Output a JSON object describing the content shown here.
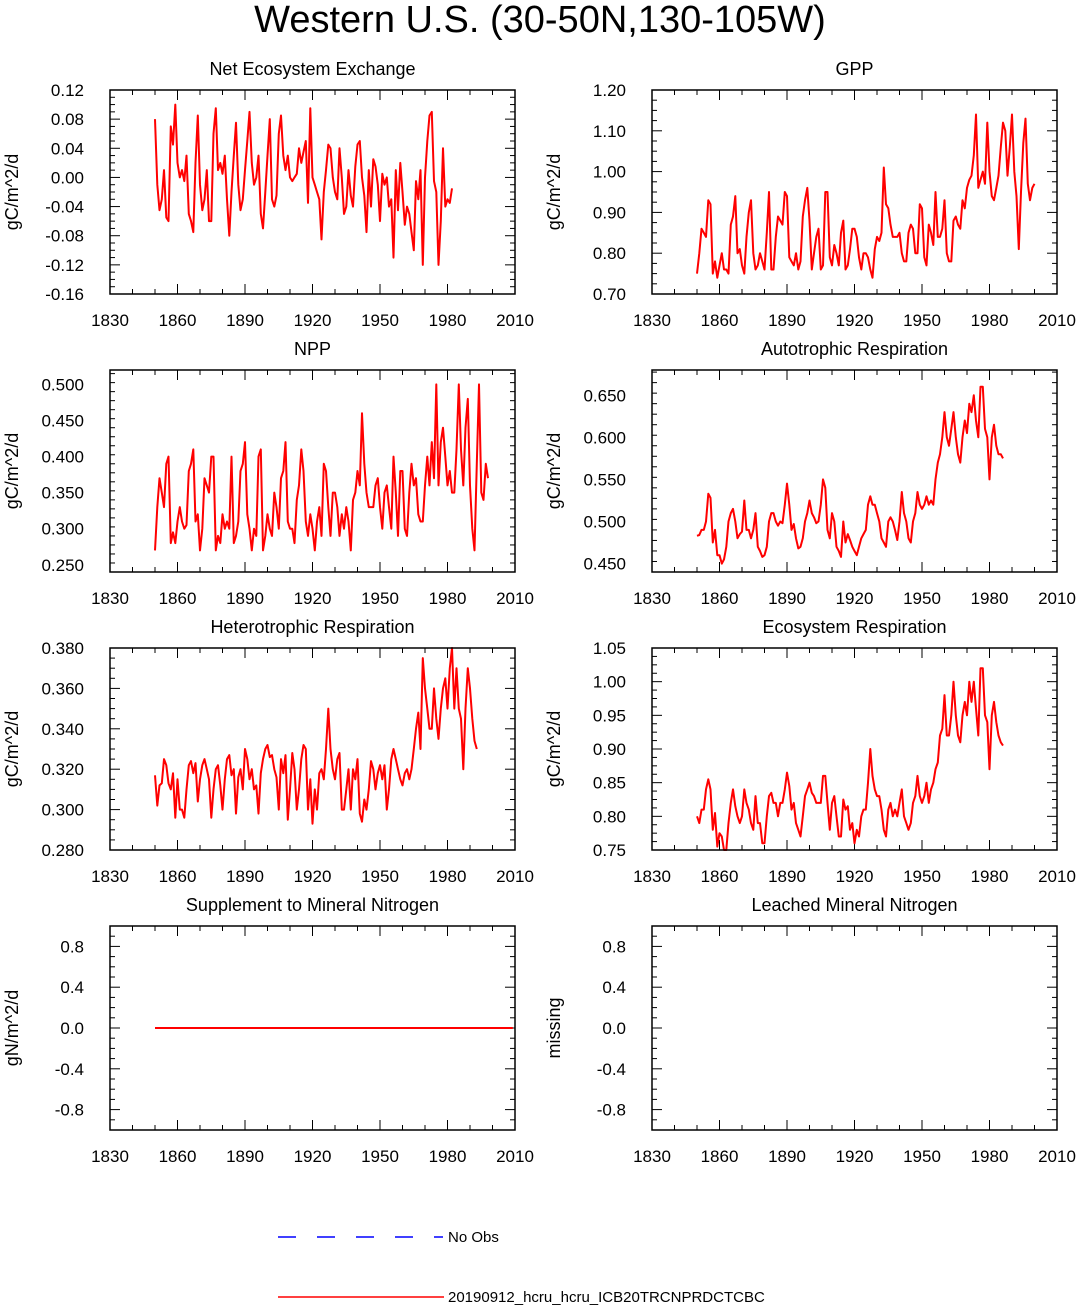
{
  "title": "Western U.S. (30-50N,130-105W)",
  "colors": {
    "model": "#ff0000",
    "obs": "#0000ff",
    "frame": "#000000"
  },
  "legend": {
    "obs_label": "No Obs",
    "model_label": "20190912_hcru_hcru_ICB20TRCNPRDCTCBC"
  },
  "chart_data": [
    {
      "type": "line",
      "title": "Net Ecosystem Exchange",
      "ylabel": "gC/m^2/d",
      "xlim": [
        1830,
        2010
      ],
      "ylim": [
        -0.16,
        0.12
      ],
      "xticks": [
        1830,
        1860,
        1890,
        1920,
        1950,
        1980,
        2010
      ],
      "yticks": [
        -0.16,
        -0.12,
        -0.08,
        -0.04,
        0.0,
        0.04,
        0.08,
        0.12
      ],
      "ydec": 2,
      "x_start": 1850,
      "values": [
        0.08,
        -0.01,
        -0.045,
        -0.03,
        0.01,
        -0.055,
        -0.06,
        0.07,
        0.045,
        0.1,
        0.02,
        0.0,
        0.01,
        -0.005,
        0.03,
        -0.05,
        -0.06,
        -0.075,
        0.02,
        0.085,
        -0.01,
        -0.045,
        -0.03,
        0.01,
        -0.06,
        -0.06,
        0.06,
        0.095,
        0.01,
        0.02,
        0.005,
        0.03,
        -0.03,
        -0.08,
        -0.02,
        0.03,
        0.075,
        -0.01,
        -0.045,
        -0.03,
        0.01,
        0.05,
        0.09,
        0.02,
        -0.01,
        0.0,
        0.03,
        -0.05,
        -0.07,
        -0.02,
        0.03,
        0.08,
        -0.03,
        -0.04,
        -0.025,
        0.06,
        0.085,
        0.03,
        0.01,
        0.03,
        0.0,
        -0.005,
        0.0,
        0.005,
        0.04,
        0.02,
        0.035,
        0.05,
        -0.035,
        0.095,
        0.0,
        -0.01,
        -0.02,
        -0.03,
        -0.085,
        -0.02,
        0.01,
        0.045,
        0.04,
        0.0,
        -0.02,
        -0.03,
        0.04,
        0.0,
        -0.05,
        -0.04,
        0.01,
        -0.025,
        -0.04,
        0.015,
        0.045,
        0.05,
        0.0,
        -0.025,
        -0.075,
        0.01,
        -0.04,
        0.025,
        0.015,
        -0.01,
        -0.06,
        0.005,
        -0.01,
        0.0,
        -0.04,
        -0.03,
        -0.11,
        0.01,
        -0.045,
        0.02,
        -0.02,
        -0.065,
        -0.04,
        -0.05,
        -0.075,
        -0.1,
        -0.005,
        -0.03,
        0.01,
        -0.12,
        0.0,
        0.05,
        0.085,
        0.09,
        -0.005,
        -0.02,
        -0.12,
        -0.06,
        0.04,
        -0.04,
        -0.03,
        -0.035,
        -0.015
      ]
    },
    {
      "type": "line",
      "title": "GPP",
      "ylabel": "gC/m^2/d",
      "xlim": [
        1830,
        2010
      ],
      "ylim": [
        0.7,
        1.2
      ],
      "xticks": [
        1830,
        1860,
        1890,
        1920,
        1950,
        1980,
        2010
      ],
      "yticks": [
        0.7,
        0.8,
        0.9,
        1.0,
        1.1,
        1.2
      ],
      "ydec": 2,
      "x_start": 1850,
      "values": [
        0.75,
        0.8,
        0.86,
        0.85,
        0.84,
        0.93,
        0.92,
        0.75,
        0.78,
        0.74,
        0.77,
        0.8,
        0.76,
        0.76,
        0.75,
        0.87,
        0.89,
        0.94,
        0.8,
        0.81,
        0.77,
        0.75,
        0.84,
        0.9,
        0.93,
        0.8,
        0.76,
        0.77,
        0.8,
        0.78,
        0.76,
        0.85,
        0.95,
        0.76,
        0.76,
        0.84,
        0.89,
        0.88,
        0.87,
        0.95,
        0.94,
        0.79,
        0.78,
        0.77,
        0.8,
        0.76,
        0.78,
        0.89,
        0.93,
        0.96,
        0.88,
        0.76,
        0.8,
        0.84,
        0.86,
        0.76,
        0.77,
        0.95,
        0.95,
        0.79,
        0.77,
        0.82,
        0.8,
        0.77,
        0.85,
        0.88,
        0.76,
        0.77,
        0.81,
        0.86,
        0.86,
        0.84,
        0.79,
        0.76,
        0.8,
        0.8,
        0.79,
        0.76,
        0.74,
        0.81,
        0.84,
        0.83,
        0.85,
        1.01,
        0.92,
        0.91,
        0.87,
        0.84,
        0.84,
        0.84,
        0.85,
        0.8,
        0.78,
        0.78,
        0.85,
        0.87,
        0.86,
        0.8,
        0.8,
        0.92,
        0.91,
        0.79,
        0.77,
        0.87,
        0.85,
        0.82,
        0.95,
        0.84,
        0.84,
        0.86,
        0.93,
        0.8,
        0.78,
        0.78,
        0.88,
        0.89,
        0.87,
        0.86,
        0.93,
        0.91,
        0.96,
        0.98,
        0.99,
        1.04,
        1.14,
        0.96,
        0.98,
        1.0,
        0.97,
        1.12,
        1.0,
        0.94,
        0.93,
        0.96,
        0.99,
        1.06,
        1.12,
        1.1,
        0.99,
        1.06,
        1.14,
        1.0,
        0.94,
        0.81,
        0.95,
        1.07,
        1.13,
        0.97,
        0.93,
        0.96,
        0.97
      ]
    },
    {
      "type": "line",
      "title": "NPP",
      "ylabel": "gC/m^2/d",
      "xlim": [
        1830,
        2010
      ],
      "ylim": [
        0.24,
        0.52
      ],
      "xticks": [
        1830,
        1860,
        1890,
        1920,
        1950,
        1980,
        2010
      ],
      "yticks": [
        0.25,
        0.3,
        0.35,
        0.4,
        0.45,
        0.5
      ],
      "ydec": 3,
      "x_start": 1850,
      "values": [
        0.27,
        0.33,
        0.37,
        0.35,
        0.33,
        0.39,
        0.4,
        0.28,
        0.295,
        0.28,
        0.31,
        0.33,
        0.31,
        0.3,
        0.305,
        0.38,
        0.39,
        0.41,
        0.31,
        0.32,
        0.27,
        0.3,
        0.37,
        0.36,
        0.35,
        0.4,
        0.4,
        0.27,
        0.29,
        0.28,
        0.32,
        0.3,
        0.31,
        0.3,
        0.4,
        0.28,
        0.29,
        0.31,
        0.38,
        0.39,
        0.42,
        0.32,
        0.3,
        0.27,
        0.3,
        0.29,
        0.4,
        0.41,
        0.27,
        0.29,
        0.32,
        0.3,
        0.29,
        0.35,
        0.33,
        0.3,
        0.37,
        0.38,
        0.42,
        0.31,
        0.3,
        0.3,
        0.28,
        0.34,
        0.36,
        0.41,
        0.38,
        0.31,
        0.29,
        0.32,
        0.3,
        0.27,
        0.31,
        0.33,
        0.29,
        0.39,
        0.38,
        0.33,
        0.29,
        0.35,
        0.35,
        0.33,
        0.29,
        0.32,
        0.3,
        0.33,
        0.31,
        0.27,
        0.34,
        0.35,
        0.38,
        0.36,
        0.46,
        0.39,
        0.35,
        0.33,
        0.33,
        0.33,
        0.36,
        0.37,
        0.33,
        0.3,
        0.35,
        0.36,
        0.33,
        0.3,
        0.4,
        0.35,
        0.29,
        0.38,
        0.38,
        0.3,
        0.29,
        0.35,
        0.39,
        0.36,
        0.37,
        0.32,
        0.31,
        0.31,
        0.36,
        0.4,
        0.36,
        0.42,
        0.37,
        0.5,
        0.36,
        0.42,
        0.44,
        0.4,
        0.36,
        0.38,
        0.35,
        0.35,
        0.41,
        0.5,
        0.41,
        0.36,
        0.44,
        0.48,
        0.36,
        0.3,
        0.27,
        0.39,
        0.5,
        0.35,
        0.34,
        0.39,
        0.37
      ]
    },
    {
      "type": "line",
      "title": "Autotrophic Respiration",
      "ylabel": "gC/m^2/d",
      "xlim": [
        1830,
        2010
      ],
      "ylim": [
        0.44,
        0.68
      ],
      "xticks": [
        1830,
        1860,
        1890,
        1920,
        1950,
        1980,
        2010
      ],
      "yticks": [
        0.45,
        0.5,
        0.55,
        0.6,
        0.65
      ],
      "ydec": 3,
      "x_start": 1850,
      "values": [
        0.483,
        0.484,
        0.49,
        0.49,
        0.5,
        0.533,
        0.528,
        0.475,
        0.49,
        0.46,
        0.46,
        0.45,
        0.455,
        0.47,
        0.5,
        0.51,
        0.515,
        0.5,
        0.48,
        0.485,
        0.488,
        0.525,
        0.49,
        0.49,
        0.48,
        0.49,
        0.51,
        0.47,
        0.465,
        0.458,
        0.46,
        0.47,
        0.5,
        0.51,
        0.51,
        0.5,
        0.495,
        0.5,
        0.498,
        0.52,
        0.545,
        0.52,
        0.49,
        0.497,
        0.48,
        0.468,
        0.47,
        0.48,
        0.5,
        0.51,
        0.525,
        0.51,
        0.505,
        0.498,
        0.5,
        0.52,
        0.55,
        0.54,
        0.49,
        0.48,
        0.51,
        0.5,
        0.47,
        0.465,
        0.458,
        0.5,
        0.475,
        0.485,
        0.478,
        0.47,
        0.465,
        0.46,
        0.47,
        0.48,
        0.485,
        0.49,
        0.52,
        0.53,
        0.52,
        0.52,
        0.51,
        0.5,
        0.48,
        0.475,
        0.47,
        0.5,
        0.505,
        0.5,
        0.49,
        0.478,
        0.5,
        0.535,
        0.51,
        0.5,
        0.48,
        0.475,
        0.5,
        0.51,
        0.535,
        0.52,
        0.515,
        0.52,
        0.53,
        0.52,
        0.525,
        0.52,
        0.55,
        0.57,
        0.58,
        0.6,
        0.63,
        0.6,
        0.59,
        0.61,
        0.63,
        0.6,
        0.58,
        0.57,
        0.6,
        0.62,
        0.605,
        0.64,
        0.63,
        0.65,
        0.62,
        0.6,
        0.66,
        0.66,
        0.61,
        0.6,
        0.55,
        0.6,
        0.615,
        0.59,
        0.58,
        0.58,
        0.575
      ]
    },
    {
      "type": "line",
      "title": "Heterotrophic Respiration",
      "ylabel": "gC/m^2/d",
      "xlim": [
        1830,
        2010
      ],
      "ylim": [
        0.28,
        0.38
      ],
      "xticks": [
        1830,
        1860,
        1890,
        1920,
        1950,
        1980,
        2010
      ],
      "yticks": [
        0.28,
        0.3,
        0.32,
        0.34,
        0.36,
        0.38
      ],
      "ydec": 3,
      "x_start": 1850,
      "values": [
        0.317,
        0.302,
        0.312,
        0.313,
        0.325,
        0.322,
        0.313,
        0.31,
        0.318,
        0.296,
        0.315,
        0.3,
        0.3,
        0.296,
        0.31,
        0.322,
        0.324,
        0.318,
        0.323,
        0.304,
        0.315,
        0.322,
        0.325,
        0.32,
        0.315,
        0.296,
        0.31,
        0.32,
        0.322,
        0.312,
        0.3,
        0.315,
        0.325,
        0.327,
        0.317,
        0.32,
        0.298,
        0.316,
        0.32,
        0.31,
        0.33,
        0.325,
        0.315,
        0.32,
        0.31,
        0.312,
        0.298,
        0.318,
        0.325,
        0.33,
        0.332,
        0.326,
        0.327,
        0.32,
        0.316,
        0.3,
        0.325,
        0.318,
        0.327,
        0.295,
        0.31,
        0.328,
        0.32,
        0.3,
        0.31,
        0.325,
        0.332,
        0.33,
        0.3,
        0.315,
        0.293,
        0.31,
        0.3,
        0.318,
        0.32,
        0.315,
        0.33,
        0.35,
        0.33,
        0.32,
        0.315,
        0.325,
        0.328,
        0.3,
        0.3,
        0.31,
        0.32,
        0.3,
        0.32,
        0.315,
        0.325,
        0.298,
        0.294,
        0.305,
        0.3,
        0.31,
        0.324,
        0.32,
        0.31,
        0.318,
        0.322,
        0.315,
        0.322,
        0.3,
        0.31,
        0.325,
        0.33,
        0.325,
        0.32,
        0.315,
        0.312,
        0.318,
        0.32,
        0.315,
        0.32,
        0.33,
        0.34,
        0.348,
        0.33,
        0.375,
        0.36,
        0.35,
        0.34,
        0.34,
        0.36,
        0.345,
        0.335,
        0.35,
        0.36,
        0.365,
        0.35,
        0.37,
        0.38,
        0.35,
        0.37,
        0.35,
        0.345,
        0.32,
        0.35,
        0.37,
        0.36,
        0.345,
        0.334,
        0.33
      ]
    },
    {
      "type": "line",
      "title": "Ecosystem Respiration",
      "ylabel": "gC/m^2/d",
      "xlim": [
        1830,
        2010
      ],
      "ylim": [
        0.75,
        1.05
      ],
      "xticks": [
        1830,
        1860,
        1890,
        1920,
        1950,
        1980,
        2010
      ],
      "yticks": [
        0.75,
        0.8,
        0.85,
        0.9,
        0.95,
        1.0,
        1.05
      ],
      "ydec": 2,
      "x_start": 1850,
      "values": [
        0.8,
        0.79,
        0.81,
        0.81,
        0.84,
        0.855,
        0.84,
        0.78,
        0.805,
        0.755,
        0.775,
        0.77,
        0.75,
        0.75,
        0.79,
        0.82,
        0.84,
        0.815,
        0.8,
        0.79,
        0.8,
        0.84,
        0.82,
        0.81,
        0.79,
        0.78,
        0.83,
        0.79,
        0.79,
        0.76,
        0.76,
        0.8,
        0.83,
        0.835,
        0.82,
        0.82,
        0.8,
        0.82,
        0.82,
        0.84,
        0.865,
        0.845,
        0.81,
        0.82,
        0.79,
        0.78,
        0.77,
        0.8,
        0.83,
        0.84,
        0.85,
        0.835,
        0.83,
        0.82,
        0.82,
        0.82,
        0.86,
        0.86,
        0.82,
        0.78,
        0.82,
        0.83,
        0.8,
        0.77,
        0.77,
        0.825,
        0.81,
        0.815,
        0.78,
        0.79,
        0.76,
        0.78,
        0.77,
        0.8,
        0.81,
        0.81,
        0.85,
        0.9,
        0.86,
        0.84,
        0.83,
        0.83,
        0.81,
        0.78,
        0.77,
        0.81,
        0.82,
        0.8,
        0.81,
        0.8,
        0.82,
        0.84,
        0.8,
        0.79,
        0.78,
        0.79,
        0.82,
        0.83,
        0.86,
        0.83,
        0.82,
        0.83,
        0.85,
        0.82,
        0.84,
        0.85,
        0.87,
        0.88,
        0.92,
        0.93,
        0.98,
        0.92,
        0.92,
        0.95,
        1.0,
        0.95,
        0.92,
        0.91,
        0.95,
        0.97,
        0.95,
        1.0,
        0.97,
        1.0,
        0.96,
        0.92,
        1.02,
        1.02,
        0.95,
        0.94,
        0.87,
        0.95,
        0.97,
        0.94,
        0.92,
        0.91,
        0.905
      ]
    },
    {
      "type": "line",
      "title": "Supplement to Mineral Nitrogen",
      "ylabel": "gN/m^2/d",
      "xlim": [
        1830,
        2010
      ],
      "ylim": [
        -1.0,
        1.0
      ],
      "xticks": [
        1830,
        1860,
        1890,
        1920,
        1950,
        1980,
        2010
      ],
      "yticks": [
        -0.8,
        -0.4,
        0.0,
        0.4,
        0.8
      ],
      "ydec": 1,
      "x_start": 1850,
      "values": [
        0,
        0,
        0,
        0,
        0,
        0,
        0,
        0,
        0,
        0,
        0,
        0,
        0,
        0,
        0,
        0,
        0,
        0,
        0,
        0,
        0,
        0,
        0,
        0,
        0,
        0,
        0,
        0,
        0,
        0,
        0,
        0,
        0,
        0,
        0,
        0,
        0,
        0,
        0,
        0,
        0,
        0,
        0,
        0,
        0,
        0,
        0,
        0,
        0,
        0,
        0,
        0,
        0,
        0,
        0,
        0,
        0,
        0,
        0,
        0,
        0,
        0,
        0,
        0,
        0,
        0,
        0,
        0,
        0,
        0,
        0,
        0,
        0,
        0,
        0,
        0,
        0,
        0,
        0,
        0,
        0,
        0,
        0,
        0,
        0,
        0,
        0,
        0,
        0,
        0,
        0,
        0,
        0,
        0,
        0,
        0,
        0,
        0,
        0,
        0,
        0,
        0,
        0,
        0,
        0,
        0,
        0,
        0,
        0,
        0,
        0,
        0,
        0,
        0,
        0,
        0,
        0,
        0,
        0,
        0,
        0,
        0,
        0,
        0,
        0,
        0,
        0,
        0,
        0,
        0,
        0,
        0,
        0,
        0,
        0,
        0,
        0,
        0,
        0,
        0,
        0,
        0,
        0,
        0,
        0,
        0,
        0,
        0,
        0,
        0,
        0,
        0,
        0,
        0,
        0,
        0,
        0,
        0,
        0,
        0
      ]
    },
    {
      "type": "line",
      "title": "Leached Mineral Nitrogen",
      "ylabel": "missing",
      "xlim": [
        1830,
        2010
      ],
      "ylim": [
        -1.0,
        1.0
      ],
      "xticks": [
        1830,
        1860,
        1890,
        1920,
        1950,
        1980,
        2010
      ],
      "yticks": [
        -0.8,
        -0.4,
        0.0,
        0.4,
        0.8
      ],
      "ydec": 1,
      "x_start": 1850,
      "values": []
    }
  ]
}
